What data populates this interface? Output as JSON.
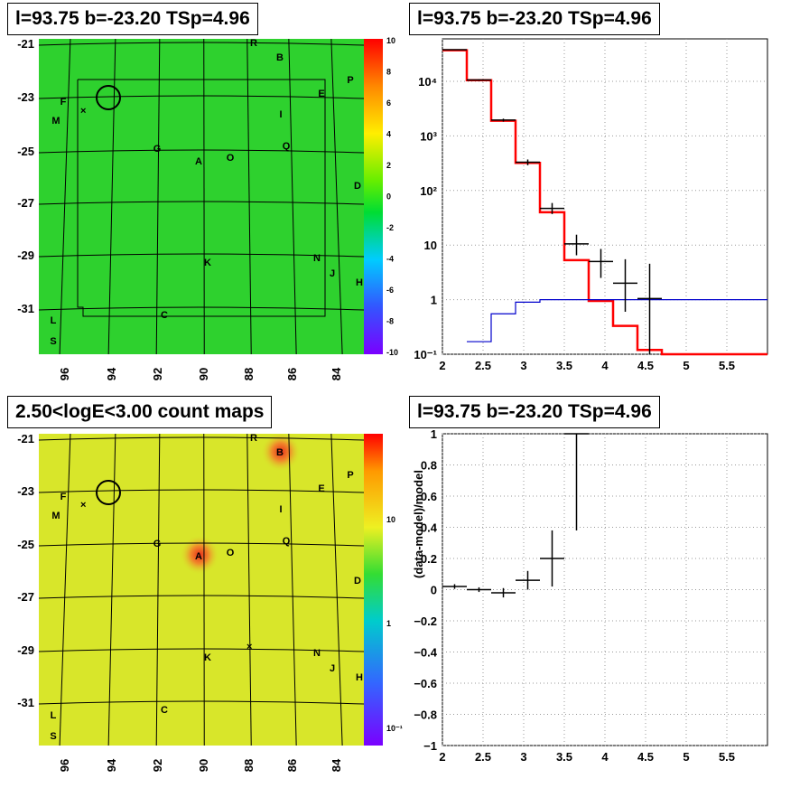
{
  "titles": {
    "top_left": "l=93.75 b=-23.20 TSp=4.96",
    "top_right": "l=93.75 b=-23.20 TSp=4.96",
    "bottom_left": "2.50<logE<3.00 count maps",
    "bottom_right": "l=93.75 b=-23.20 TSp=4.96"
  },
  "colors": {
    "model_line": "#ff0000",
    "source_model_line": "#0000cc",
    "data_points": "#000000",
    "residual_map_bg": "#2ed12e",
    "count_map_bg": "#d8e62a"
  },
  "sky_maps": {
    "x_ticks": [
      "96",
      "94",
      "92",
      "90",
      "88",
      "86",
      "84"
    ],
    "y_ticks": [
      "-21",
      "-23",
      "-25",
      "-27",
      "-29",
      "-31"
    ],
    "source_labels": [
      "R",
      "B",
      "P",
      "E",
      "F",
      "M",
      "I",
      "G",
      "Q",
      "A",
      "O",
      "D",
      "K",
      "N",
      "J",
      "H",
      "C",
      "L",
      "S"
    ],
    "residual_scale_ticks": [
      "10",
      "8",
      "6",
      "4",
      "2",
      "0",
      "-2",
      "-4",
      "-6",
      "-8",
      "-10"
    ],
    "count_scale_ticks": [
      "10",
      "1",
      "10⁻¹"
    ],
    "count_hotspots": [
      "A",
      "B"
    ]
  },
  "chart_data": [
    {
      "type": "line",
      "panel": "spectrum",
      "yscale": "log",
      "xlim": [
        2,
        6
      ],
      "ylim": [
        0.1,
        60000
      ],
      "x_ticks": [
        "2",
        "2.5",
        "3",
        "3.5",
        "4",
        "4.5",
        "5",
        "5.5"
      ],
      "y_ticks": [
        "10⁻¹",
        "1",
        "10",
        "10²",
        "10³",
        "10⁴"
      ],
      "grid": true,
      "series": [
        {
          "style": "step",
          "color": "#ff0000",
          "bin_edges": [
            2.0,
            2.3,
            2.6,
            2.9,
            3.2,
            3.5,
            3.8,
            4.1,
            4.4,
            4.7,
            6.0
          ],
          "values": [
            37000,
            10500,
            1900,
            320,
            40,
            5.3,
            0.95,
            0.33,
            0.12,
            0.1
          ]
        },
        {
          "style": "step",
          "color": "#0000cc",
          "bin_edges": [
            2.3,
            2.6,
            2.9,
            3.2,
            3.5,
            3.8,
            6.0
          ],
          "values": [
            0.17,
            0.55,
            0.9,
            1.0,
            1.0,
            1.0
          ]
        },
        {
          "style": "errorbar",
          "color": "#000000",
          "x": [
            2.15,
            2.45,
            2.75,
            3.05,
            3.35,
            3.65,
            3.95,
            4.25,
            4.55
          ],
          "xerr": 0.15,
          "y": [
            38000,
            10600,
            1950,
            330,
            47,
            10.5,
            5,
            2,
            1.05
          ],
          "yerr_low": [
            600,
            300,
            120,
            40,
            10,
            4,
            2.5,
            1.4,
            0.96
          ],
          "yerr_high": [
            600,
            300,
            120,
            40,
            12,
            5,
            3.5,
            3.5,
            3.5
          ]
        }
      ]
    },
    {
      "type": "scatter",
      "panel": "residuals",
      "ylabel": "(data-model)/model",
      "xlim": [
        2,
        6
      ],
      "ylim": [
        -1,
        1
      ],
      "x_ticks": [
        "2",
        "2.5",
        "3",
        "3.5",
        "4",
        "4.5",
        "5",
        "5.5"
      ],
      "y_ticks": [
        "1",
        "0.8",
        "0.6",
        "0.4",
        "0.2",
        "0",
        "−0.2",
        "−0.4",
        "−0.6",
        "−0.8",
        "−1"
      ],
      "grid": true,
      "series": [
        {
          "color": "#000000",
          "x": [
            2.15,
            2.45,
            2.75,
            3.05,
            3.35,
            3.65
          ],
          "xerr": 0.15,
          "y": [
            0.02,
            0.0,
            -0.02,
            0.06,
            0.2,
            1.0
          ],
          "yerr_low": [
            0.015,
            0.015,
            0.03,
            0.06,
            0.18,
            0.62
          ],
          "yerr_high": [
            0.015,
            0.015,
            0.03,
            0.06,
            0.18,
            0.0
          ]
        }
      ]
    }
  ]
}
